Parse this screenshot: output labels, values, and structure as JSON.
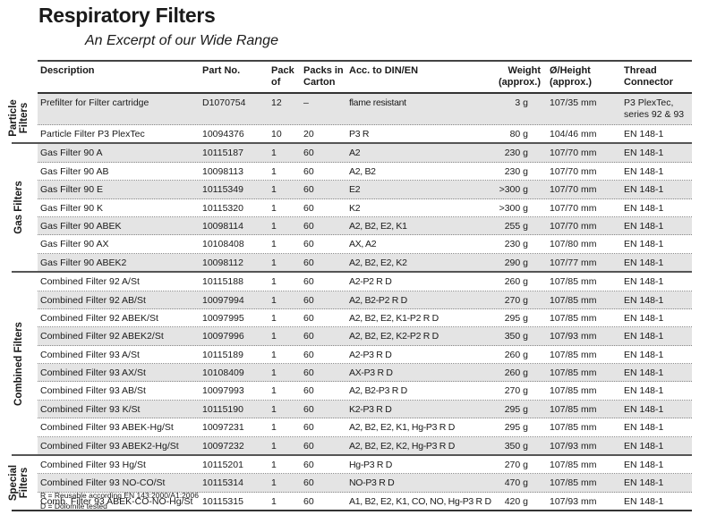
{
  "title": "Respiratory Filters",
  "subtitle": "An Excerpt of our Wide Range",
  "columns": [
    "Description",
    "Part No.",
    "Pack of",
    "Packs in Carton",
    "Acc. to DIN/EN",
    "Weight (approx.)",
    "Ø/Height (approx.)",
    "Thread Connector"
  ],
  "sections": [
    {
      "label": "Particle Filters",
      "rows": [
        [
          "Prefilter for Filter cartridge",
          "D1070754",
          "12",
          "–",
          "flame resistant",
          "3 g",
          "107/35 mm",
          "P3 PlexTec, series 92 & 93"
        ],
        [
          "Particle Filter P3 PlexTec",
          "10094376",
          "10",
          "20",
          "P3 R",
          "80 g",
          "104/46 mm",
          "EN 148-1"
        ]
      ]
    },
    {
      "label": "Gas Filters",
      "rows": [
        [
          "Gas Filter 90 A",
          "10115187",
          "1",
          "60",
          "A2",
          "230 g",
          "107/70 mm",
          "EN 148-1"
        ],
        [
          "Gas Filter 90 AB",
          "10098113",
          "1",
          "60",
          "A2, B2",
          "230 g",
          "107/70 mm",
          "EN 148-1"
        ],
        [
          "Gas Filter 90 E",
          "10115349",
          "1",
          "60",
          "E2",
          ">300 g",
          "107/70 mm",
          "EN 148-1"
        ],
        [
          "Gas Filter 90 K",
          "10115320",
          "1",
          "60",
          "K2",
          ">300 g",
          "107/70 mm",
          "EN 148-1"
        ],
        [
          "Gas Filter 90 ABEK",
          "10098114",
          "1",
          "60",
          "A2, B2, E2, K1",
          "255 g",
          "107/70 mm",
          "EN 148-1"
        ],
        [
          "Gas Filter 90 AX",
          "10108408",
          "1",
          "60",
          "AX, A2",
          "230 g",
          "107/80 mm",
          "EN 148-1"
        ],
        [
          "Gas Filter 90 ABEK2",
          "10098112",
          "1",
          "60",
          "A2, B2, E2, K2",
          "290 g",
          "107/77 mm",
          "EN 148-1"
        ]
      ]
    },
    {
      "label": "Combined Filters",
      "rows": [
        [
          "Combined Filter 92 A/St",
          "10115188",
          "1",
          "60",
          "A2-P2 R D",
          "260 g",
          "107/85 mm",
          "EN 148-1"
        ],
        [
          "Combined Filter 92 AB/St",
          "10097994",
          "1",
          "60",
          "A2, B2-P2 R D",
          "270 g",
          "107/85 mm",
          "EN 148-1"
        ],
        [
          "Combined Filter 92 ABEK/St",
          "10097995",
          "1",
          "60",
          "A2, B2, E2, K1-P2 R D",
          "295 g",
          "107/85 mm",
          "EN 148-1"
        ],
        [
          "Combined Filter 92 ABEK2/St",
          "10097996",
          "1",
          "60",
          "A2, B2, E2, K2-P2 R D",
          "350 g",
          "107/93 mm",
          "EN 148-1"
        ],
        [
          "Combined Filter 93 A/St",
          "10115189",
          "1",
          "60",
          "A2-P3 R D",
          "260 g",
          "107/85 mm",
          "EN 148-1"
        ],
        [
          "Combined Filter 93 AX/St",
          "10108409",
          "1",
          "60",
          "AX-P3 R D",
          "260 g",
          "107/85 mm",
          "EN 148-1"
        ],
        [
          "Combined Filter 93 AB/St",
          "10097993",
          "1",
          "60",
          "A2, B2-P3 R D",
          "270 g",
          "107/85 mm",
          "EN 148-1"
        ],
        [
          "Combined Filter 93 K/St",
          "10115190",
          "1",
          "60",
          "K2-P3 R D",
          "295 g",
          "107/85 mm",
          "EN 148-1"
        ],
        [
          "Combined Filter 93 ABEK-Hg/St",
          "10097231",
          "1",
          "60",
          "A2, B2, E2, K1, Hg-P3 R D",
          "295 g",
          "107/85 mm",
          "EN 148-1"
        ],
        [
          "Combined Filter 93 ABEK2-Hg/St",
          "10097232",
          "1",
          "60",
          "A2, B2, E2, K2, Hg-P3 R D",
          "350 g",
          "107/93 mm",
          "EN 148-1"
        ]
      ]
    },
    {
      "label": "Special Filters",
      "rows": [
        [
          "Combined Filter 93 Hg/St",
          "10115201",
          "1",
          "60",
          "Hg-P3 R D",
          "270 g",
          "107/85 mm",
          "EN 148-1"
        ],
        [
          "Combined Filter 93 NO-CO/St",
          "10115314",
          "1",
          "60",
          "NO-P3 R D",
          "470 g",
          "107/85 mm",
          "EN 148-1"
        ],
        [
          "Comb. Filter 93 ABEK-CO-NO-Hg/St",
          "10115315",
          "1",
          "60",
          "A1, B2, E2, K1, CO, NO, Hg-P3 R D",
          "420 g",
          "107/93 mm",
          "EN 148-1"
        ]
      ]
    }
  ],
  "notes": [
    "R = Reusable according EN 143:2000/A1:2006",
    "D = Dolomite tested"
  ]
}
